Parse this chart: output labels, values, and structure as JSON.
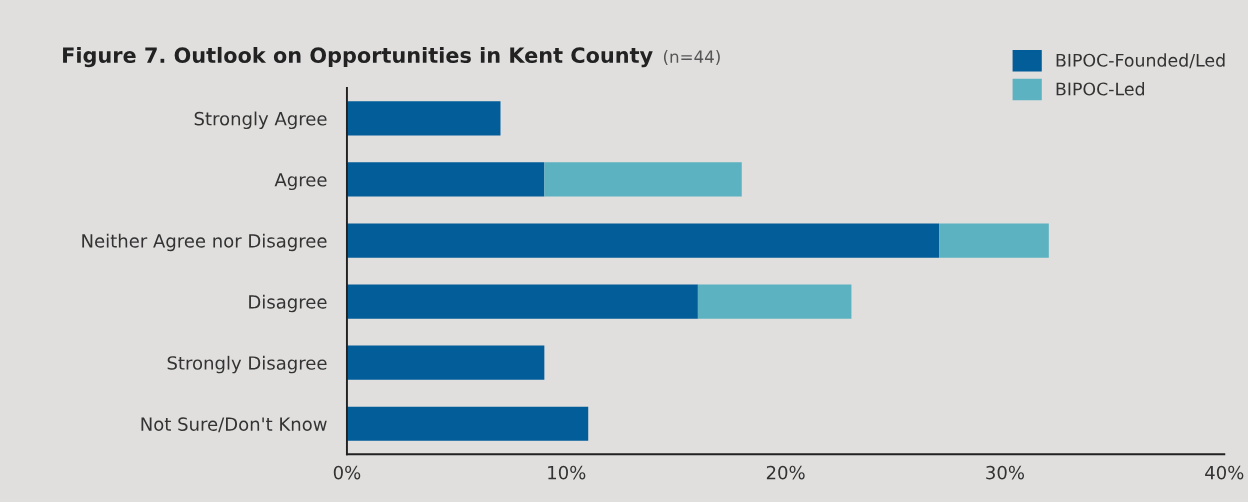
{
  "chart_data": {
    "type": "bar",
    "orientation": "horizontal",
    "stacked": true,
    "title": "Figure 7. Outlook on Opportunities in Kent County",
    "subtitle": "(n=44)",
    "categories": [
      "Strongly Agree",
      "Agree",
      "Neither Agree nor Disagree",
      "Disagree",
      "Strongly Disagree",
      "Not Sure/Don't Know"
    ],
    "series": [
      {
        "name": "BIPOC-Founded/Led",
        "color": "#025d98",
        "values": [
          7,
          9,
          27,
          16,
          9,
          11
        ]
      },
      {
        "name": "BIPOC-Led",
        "color": "#5cb2c0",
        "values": [
          null,
          9,
          5,
          7,
          null,
          null
        ]
      }
    ],
    "xlim": [
      0,
      40
    ],
    "xticks": [
      {
        "value": 0,
        "label": "0%"
      },
      {
        "value": 10,
        "label": "10%"
      },
      {
        "value": 20,
        "label": "20%"
      },
      {
        "value": 30,
        "label": "30%"
      },
      {
        "value": 40,
        "label": "40%"
      }
    ],
    "grid": false,
    "legend": "top right"
  }
}
